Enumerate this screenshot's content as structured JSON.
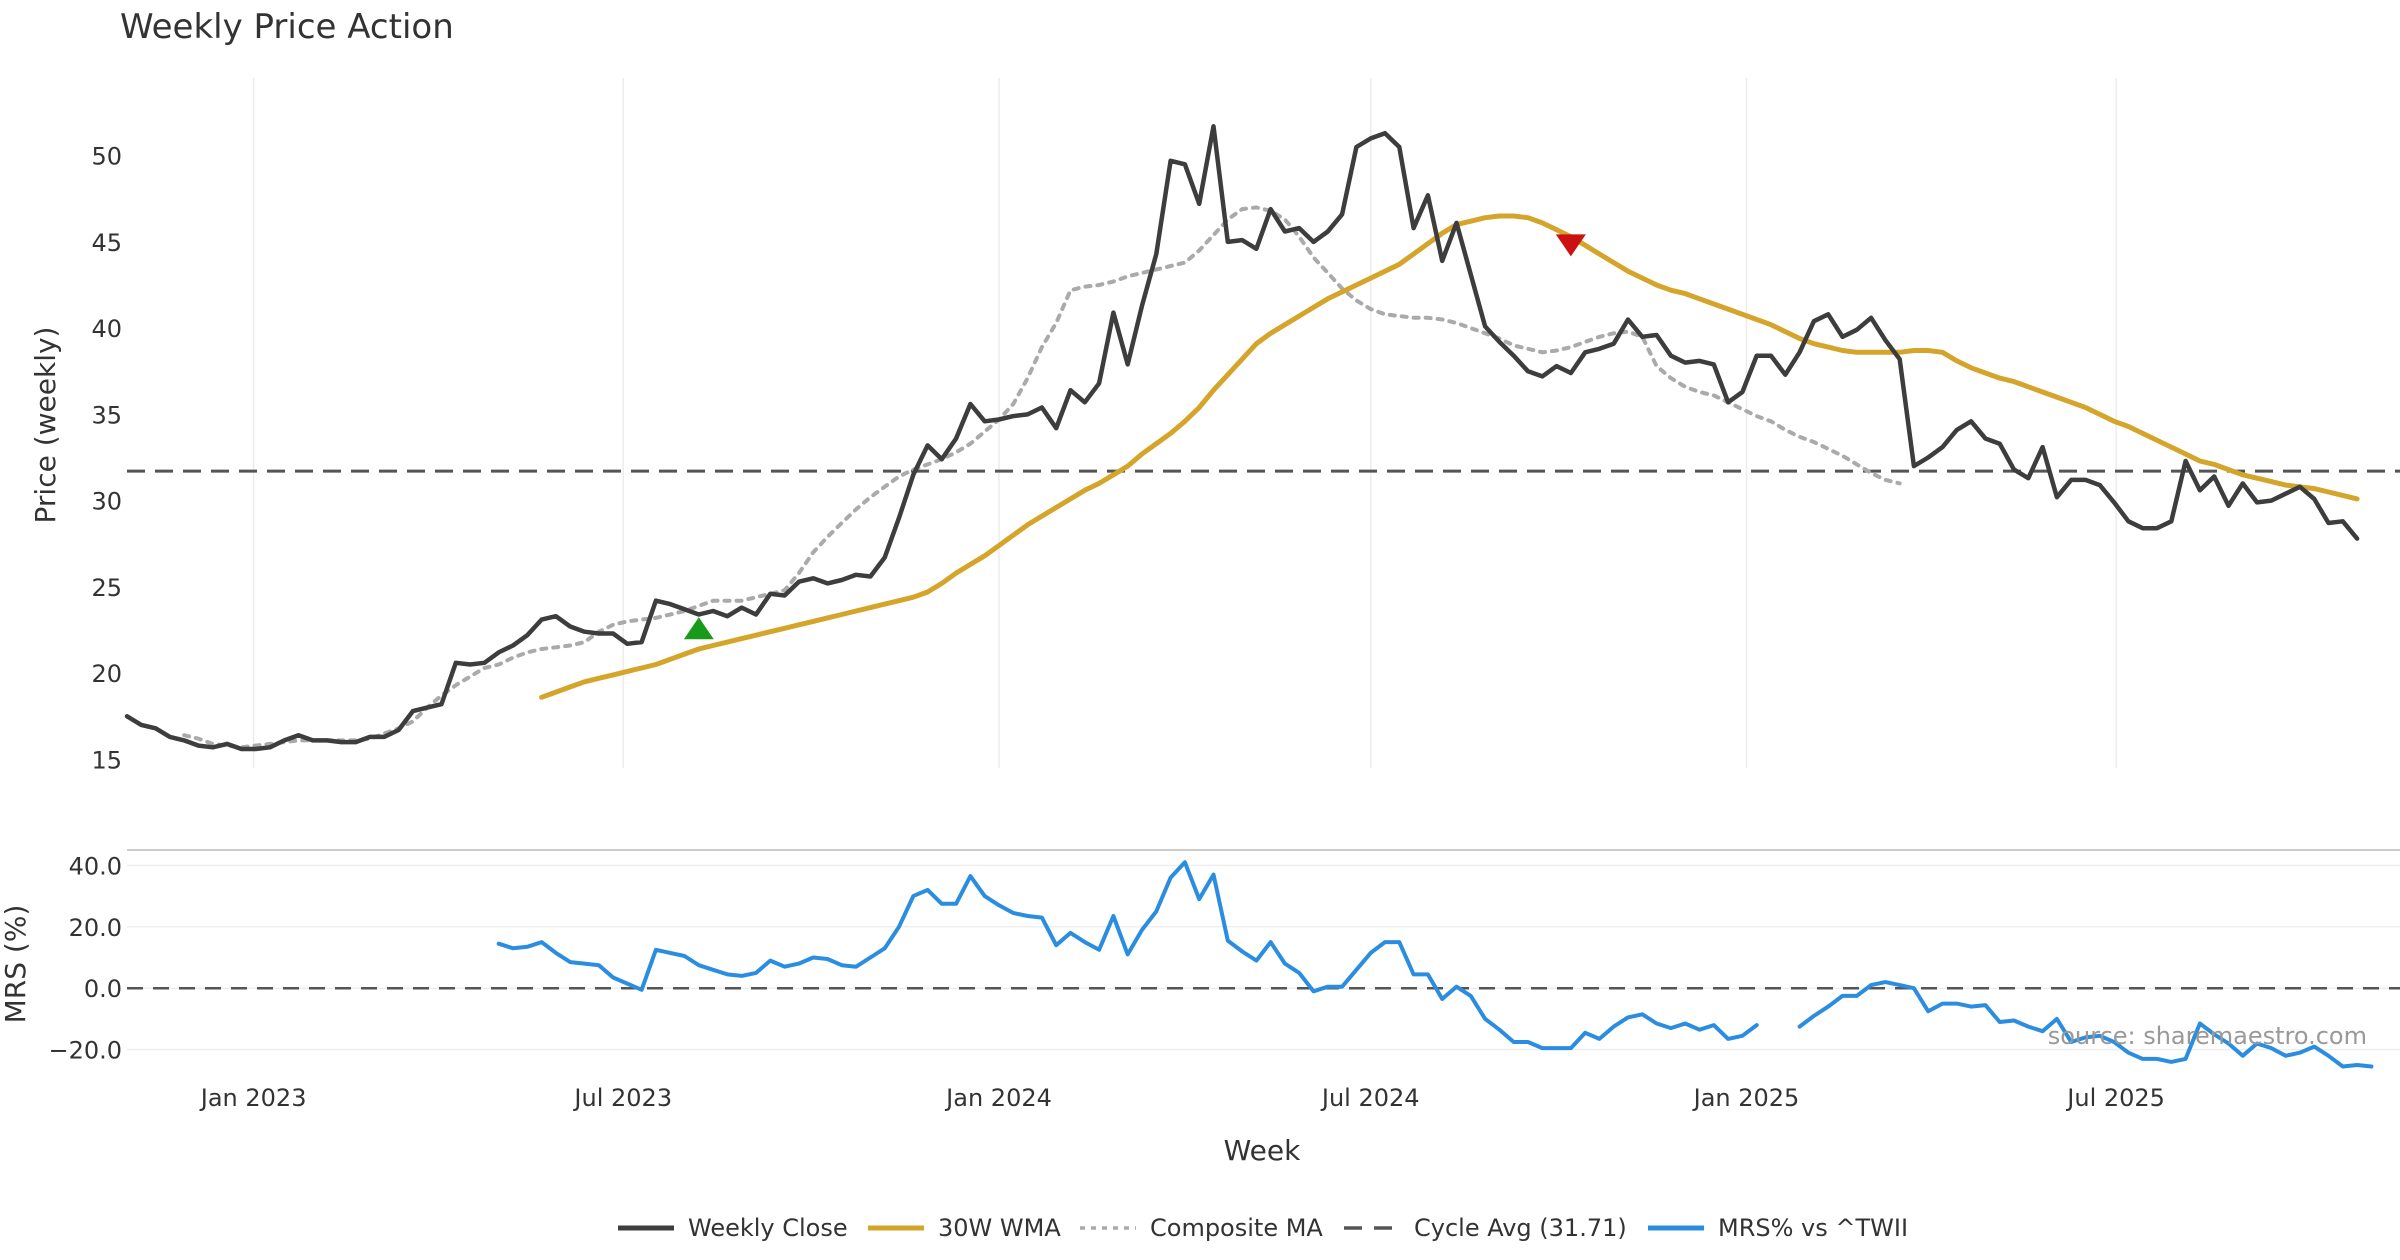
{
  "chart_data": {
    "type": "line",
    "title": "Weekly Price Action",
    "source": "source: sharemaestro.com",
    "x_axis": {
      "label": "Week",
      "range": [
        "2022-10-31",
        "2025-11-17"
      ],
      "ticks": [
        {
          "date": "2023-01-01",
          "label": "Jan 2023"
        },
        {
          "date": "2023-07-01",
          "label": "Jul 2023"
        },
        {
          "date": "2024-01-01",
          "label": "Jan 2024"
        },
        {
          "date": "2024-07-01",
          "label": "Jul 2024"
        },
        {
          "date": "2025-01-01",
          "label": "Jan 2025"
        },
        {
          "date": "2025-07-01",
          "label": "Jul 2025"
        }
      ]
    },
    "price_panel": {
      "ylabel": "Price (weekly)",
      "ylim": [
        14.5,
        54.5
      ],
      "yticks": [
        15,
        20,
        25,
        30,
        35,
        40,
        45,
        50
      ],
      "grid": "vertical",
      "reference_line": {
        "name": "Cycle Avg (31.71)",
        "value": 31.71,
        "color": "#555555"
      },
      "series": [
        {
          "name": "Weekly Close",
          "color": "#3d3d3d",
          "style": "solid",
          "start": "2022-10-31",
          "interval_days": 7,
          "values": [
            17.5,
            17.0,
            16.8,
            16.3,
            16.1,
            15.8,
            15.7,
            15.9,
            15.6,
            15.6,
            15.7,
            16.1,
            16.4,
            16.1,
            16.1,
            16.0,
            16.0,
            16.3,
            16.3,
            16.7,
            17.8,
            18.0,
            18.2,
            20.6,
            20.5,
            20.6,
            21.2,
            21.6,
            22.2,
            23.1,
            23.3,
            22.7,
            22.4,
            22.3,
            22.3,
            21.7,
            21.8,
            24.2,
            24.0,
            23.7,
            23.4,
            23.6,
            23.3,
            23.8,
            23.4,
            24.6,
            24.5,
            25.3,
            25.5,
            25.2,
            25.4,
            25.7,
            25.6,
            26.7,
            29.0,
            31.5,
            33.2,
            32.4,
            33.6,
            35.6,
            34.6,
            34.7,
            34.9,
            35.0,
            35.4,
            34.2,
            36.4,
            35.7,
            36.8,
            40.9,
            37.9,
            41.3,
            44.3,
            49.7,
            49.5,
            47.2,
            51.7,
            45.0,
            45.1,
            44.6,
            46.9,
            45.6,
            45.8,
            45.0,
            45.6,
            46.6,
            50.5,
            51.0,
            51.3,
            50.5,
            45.8,
            47.7,
            43.9,
            46.1,
            43.1,
            40.1,
            39.2,
            38.4,
            37.5,
            37.2,
            37.8,
            37.4,
            38.6,
            38.8,
            39.1,
            40.5,
            39.5,
            39.6,
            38.4,
            38.0,
            38.1,
            37.9,
            35.7,
            36.3,
            38.4,
            38.4,
            37.3,
            38.6,
            40.4,
            40.8,
            39.5,
            39.9,
            40.6,
            39.3,
            38.2,
            32.0,
            32.5,
            33.1,
            34.1,
            34.6,
            33.6,
            33.3,
            31.8,
            31.3,
            33.1,
            30.2,
            31.2,
            31.2,
            30.9,
            29.9,
            28.8,
            28.4,
            28.4,
            28.8,
            32.3,
            30.6,
            31.4,
            29.7,
            31.0,
            29.9,
            30.0,
            30.4,
            30.8,
            30.1,
            28.7,
            28.8,
            27.8
          ]
        },
        {
          "name": "30W WMA",
          "color": "#d4a52a",
          "style": "solid",
          "start": "2023-05-22",
          "interval_days": 7,
          "values": [
            18.6,
            18.9,
            19.2,
            19.5,
            19.7,
            19.9,
            20.1,
            20.3,
            20.5,
            20.8,
            21.1,
            21.4,
            21.6,
            21.8,
            22.0,
            22.2,
            22.4,
            22.6,
            22.8,
            23.0,
            23.2,
            23.4,
            23.6,
            23.8,
            24.0,
            24.2,
            24.4,
            24.7,
            25.2,
            25.8,
            26.3,
            26.8,
            27.4,
            28.0,
            28.6,
            29.1,
            29.6,
            30.1,
            30.6,
            31.0,
            31.5,
            32.0,
            32.7,
            33.3,
            33.9,
            34.6,
            35.4,
            36.4,
            37.3,
            38.2,
            39.1,
            39.7,
            40.2,
            40.7,
            41.2,
            41.7,
            42.1,
            42.5,
            42.9,
            43.3,
            43.7,
            44.3,
            44.9,
            45.5,
            46.0,
            46.2,
            46.4,
            46.5,
            46.5,
            46.4,
            46.1,
            45.7,
            45.3,
            44.8,
            44.3,
            43.8,
            43.3,
            42.9,
            42.5,
            42.2,
            42.0,
            41.7,
            41.4,
            41.1,
            40.8,
            40.5,
            40.2,
            39.8,
            39.4,
            39.1,
            38.9,
            38.7,
            38.6,
            38.6,
            38.6,
            38.6,
            38.7,
            38.7,
            38.6,
            38.1,
            37.7,
            37.4,
            37.1,
            36.9,
            36.6,
            36.3,
            36.0,
            35.7,
            35.4,
            35.0,
            34.6,
            34.3,
            33.9,
            33.5,
            33.1,
            32.7,
            32.3,
            32.1,
            31.8,
            31.5,
            31.3,
            31.1,
            30.9,
            30.8,
            30.7,
            30.5,
            30.3,
            30.1
          ]
        },
        {
          "name": "Composite MA",
          "color": "#aaaaaa",
          "style": "dotted",
          "start": "2022-11-28",
          "interval_days": 7,
          "values": [
            16.4,
            16.2,
            15.9,
            15.8,
            15.7,
            15.8,
            15.9,
            16.0,
            16.1,
            16.1,
            16.1,
            16.1,
            16.1,
            16.2,
            16.5,
            16.8,
            17.2,
            18.0,
            18.7,
            19.3,
            19.8,
            20.3,
            20.5,
            20.9,
            21.2,
            21.4,
            21.5,
            21.6,
            21.8,
            22.4,
            22.8,
            23.0,
            23.1,
            23.2,
            23.4,
            23.6,
            23.9,
            24.2,
            24.2,
            24.2,
            24.4,
            24.6,
            24.8,
            25.8,
            27.0,
            27.9,
            28.7,
            29.5,
            30.2,
            30.8,
            31.4,
            31.8,
            32.1,
            32.4,
            32.8,
            33.3,
            34.0,
            34.7,
            35.6,
            37.1,
            38.9,
            40.3,
            42.2,
            42.4,
            42.5,
            42.7,
            43.0,
            43.2,
            43.4,
            43.6,
            43.8,
            44.5,
            45.4,
            46.3,
            46.9,
            47.0,
            46.8,
            46.3,
            45.3,
            44.1,
            43.2,
            42.3,
            41.6,
            41.1,
            40.8,
            40.7,
            40.6,
            40.6,
            40.5,
            40.3,
            40.0,
            39.7,
            39.4,
            39.0,
            38.8,
            38.6,
            38.7,
            38.9,
            39.2,
            39.5,
            39.7,
            39.8,
            39.5,
            37.8,
            37.1,
            36.6,
            36.3,
            36.1,
            35.7,
            35.3,
            34.9,
            34.6,
            34.1,
            33.7,
            33.4,
            33.0,
            32.6,
            32.1,
            31.6,
            31.2,
            31.0
          ]
        }
      ],
      "markers": [
        {
          "type": "buy",
          "shape": "triangle-up",
          "color": "#1a9a1a",
          "date": "2023-08-07",
          "value": 22.6
        },
        {
          "type": "sell",
          "shape": "triangle-down",
          "color": "#cc1111",
          "date": "2024-10-07",
          "value": 44.8
        }
      ]
    },
    "mrs_panel": {
      "ylabel": "MRS (%)",
      "ylim": [
        -25,
        45
      ],
      "yticks": [
        -20.0,
        0.0,
        20.0,
        40.0
      ],
      "ytick_labels": [
        "−20.0",
        "0.0",
        "20.0",
        "40.0"
      ],
      "grid": "horizontal",
      "zero_line": 0,
      "series": [
        {
          "name": "MRS% vs ^TWII",
          "color": "#2b8de0",
          "style": "solid",
          "start": "2023-05-01",
          "interval_days": 7,
          "segments": [
            [
              14.5,
              13.0,
              13.5,
              15.0,
              11.5,
              8.5,
              8.0,
              7.5,
              3.5,
              1.5,
              -0.5,
              12.5,
              11.5,
              10.5,
              7.5,
              6.0,
              4.5,
              4.0,
              5.0,
              9.0,
              7.0,
              8.0,
              10.0,
              9.5,
              7.5,
              7.0,
              10.0,
              13.0,
              20.0,
              30.0,
              32.0,
              27.5,
              27.5,
              36.5,
              30.0,
              27.0,
              24.5,
              23.5,
              23.0,
              14.0,
              18.0,
              15.0,
              12.5,
              23.5,
              11.0,
              19.0,
              25.0,
              36.0,
              41.0,
              29.0,
              37.0,
              15.5,
              12.0,
              9.0,
              15.0,
              8.0,
              5.0,
              -1.0,
              0.5,
              0.5,
              6.0,
              11.5,
              15.0,
              15.0,
              4.5,
              4.5,
              -3.5,
              0.5,
              -2.5,
              -10.0,
              -13.5,
              -17.5,
              -17.5,
              -19.5,
              -19.5,
              -19.5,
              -14.5,
              -16.5,
              -12.5,
              -9.5,
              -8.5,
              -11.5,
              -13.0,
              -11.5,
              -13.5,
              -12.0,
              -16.5,
              -15.5,
              -12.0
            ],
            [
              -12.5,
              -9.0,
              -6.0,
              -2.5,
              -2.5,
              1.0,
              2.0,
              1.0,
              0.0,
              -7.5,
              -5.0,
              -5.0,
              -6.0,
              -5.5,
              -11.0,
              -10.5,
              -12.5,
              -14.0,
              -10.0,
              -17.5,
              -16.0,
              -15.5,
              -17.5,
              -21.0,
              -23.0,
              -23.0,
              -24.0,
              -23.0,
              -11.5,
              -15.0,
              -18.0,
              -22.0,
              -18.0,
              -19.5,
              -22.0,
              -21.0,
              -19.0,
              -22.0,
              -25.5,
              -25.0,
              -25.5
            ]
          ],
          "segment_starts": [
            "2023-05-01",
            "2025-01-27"
          ]
        }
      ]
    },
    "legend": {
      "position": "bottom-center",
      "entries": [
        {
          "label": "Weekly Close",
          "color": "#3d3d3d",
          "style": "solid"
        },
        {
          "label": "30W WMA",
          "color": "#d4a52a",
          "style": "solid"
        },
        {
          "label": "Composite MA",
          "color": "#aaaaaa",
          "style": "dotted"
        },
        {
          "label": "Cycle Avg (31.71)",
          "color": "#555555",
          "style": "dashed"
        },
        {
          "label": "MRS% vs ^TWII",
          "color": "#2b8de0",
          "style": "solid"
        }
      ]
    }
  }
}
